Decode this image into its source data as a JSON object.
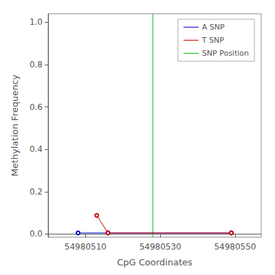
{
  "chart_data": {
    "type": "line",
    "xlabel": "CpG Coordinates",
    "ylabel": "Methylation Frequency",
    "series": [
      {
        "name": "A SNP",
        "color": "#0000cc",
        "marker": "open circle",
        "line_style": "solid",
        "x": [
          54980508,
          54980516,
          54980549
        ],
        "values": [
          0.005,
          0.005,
          0.005
        ]
      },
      {
        "name": "T SNP",
        "color": "#cc0000",
        "marker": "open circle",
        "line_style": "solid",
        "x": [
          54980513,
          54980516,
          54980549
        ],
        "values": [
          0.088,
          0.005,
          0.005
        ]
      },
      {
        "name": "SNP Position",
        "type": "vline",
        "color": "#00bb00",
        "line_style": "solid",
        "x": [
          54980528
        ]
      }
    ],
    "xlim": [
      54980500,
      54980557
    ],
    "ylim": [
      -0.015,
      1.04
    ],
    "xticks": [
      54980510,
      54980530,
      54980550
    ],
    "yticks": [
      {
        "value": 0.0,
        "label": "0.0"
      },
      0.2,
      0.4,
      0.6,
      0.8,
      {
        "value": 1.0,
        "label": "1.0"
      }
    ],
    "grid": false,
    "legend": "upper right"
  }
}
